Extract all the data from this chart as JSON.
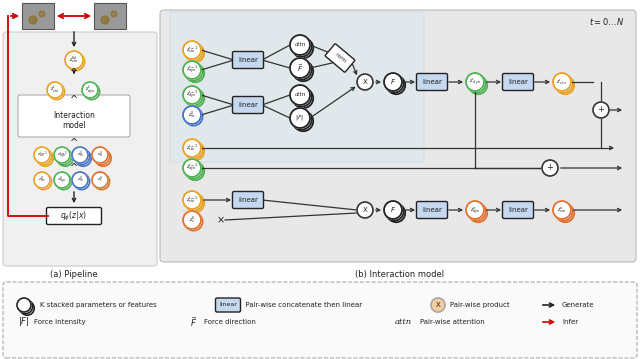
{
  "bg_color": "#ffffff",
  "legend_bg": "#f8f8f8",
  "panel_bg": "#e8e8e8",
  "blue_box": "#c5d8f0",
  "peach_x": "#f5cba0",
  "label_a": "(a) Pipeline",
  "label_b": "(b) Interaction model",
  "t_label": "t = 0 ... N",
  "colors": {
    "gold": "#E8A020",
    "green": "#4CAF50",
    "blue": "#4472C4",
    "orange": "#E07030",
    "red": "#CC0000",
    "dark": "#222222",
    "white": "#ffffff",
    "gray": "#888888"
  }
}
